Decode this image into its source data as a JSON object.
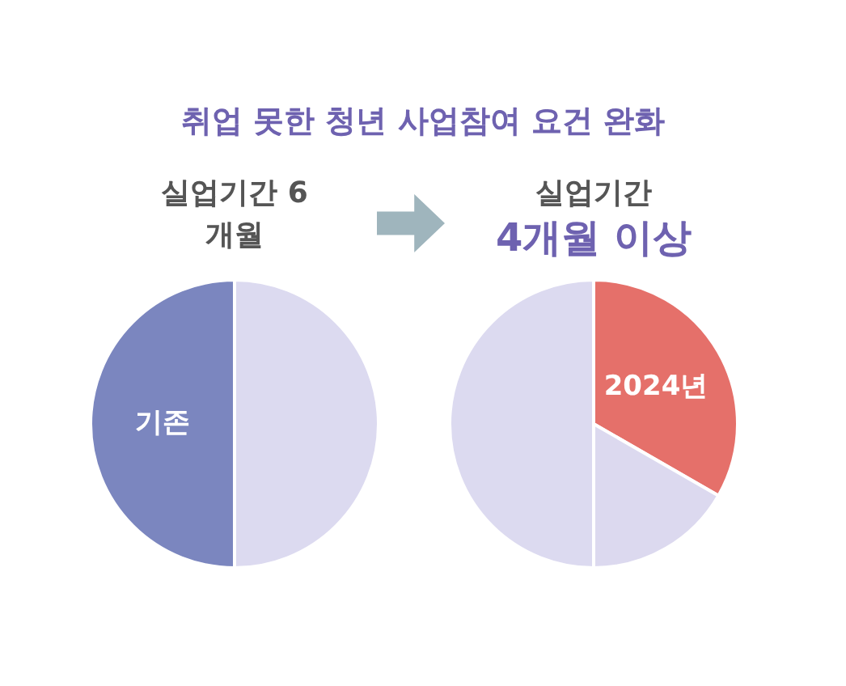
{
  "chart_data": [
    {
      "type": "pie",
      "title": "취업 못한 청년 사업참여 요건 완화",
      "subtitle": "실업기간 6개월",
      "categories": [
        null,
        "기존"
      ],
      "values": [
        50,
        50
      ],
      "colors": [
        "#dcdaf0",
        "#7b86bf"
      ]
    },
    {
      "type": "pie",
      "subtitle": "실업기간",
      "title": "4개월 이상",
      "categories": [
        "2024년",
        null,
        null
      ],
      "values": [
        33.3,
        16.7,
        50
      ],
      "colors": [
        "#e5706a",
        "#dcd9ef",
        "#dcdaf0"
      ]
    }
  ]
}
